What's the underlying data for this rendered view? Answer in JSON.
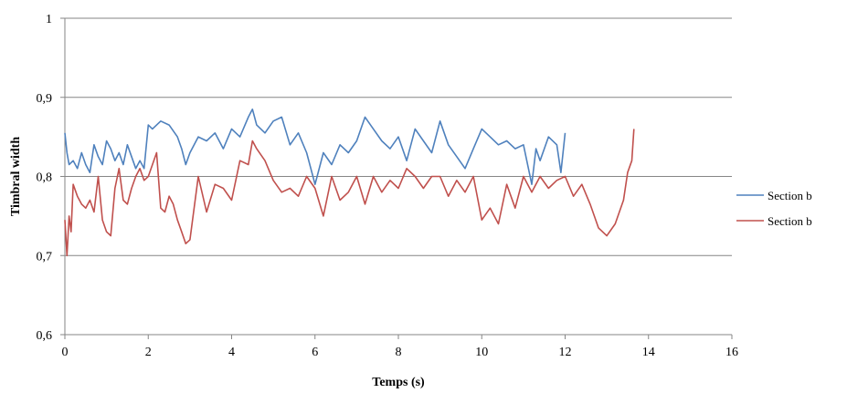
{
  "chart_data": {
    "type": "line",
    "xlabel": "Temps (s)",
    "ylabel": "Timbral width",
    "xlim": [
      0,
      16
    ],
    "ylim": [
      0.6,
      1.0
    ],
    "x_ticks": [
      0,
      2,
      4,
      6,
      8,
      10,
      12,
      14,
      16
    ],
    "x_tick_labels": [
      "0",
      "2",
      "4",
      "6",
      "8",
      "10",
      "12",
      "14",
      "16"
    ],
    "y_ticks": [
      0.6,
      0.7,
      0.8,
      0.9,
      1.0
    ],
    "y_tick_labels": [
      "0,6",
      "0,7",
      "0,8",
      "0,9",
      "1"
    ],
    "grid": "horizontal",
    "legend_position": "right",
    "series": [
      {
        "name": "Section b",
        "color": "#4f81bd",
        "x": [
          0,
          0.05,
          0.1,
          0.2,
          0.3,
          0.4,
          0.5,
          0.6,
          0.7,
          0.8,
          0.9,
          1.0,
          1.1,
          1.2,
          1.3,
          1.4,
          1.5,
          1.6,
          1.7,
          1.8,
          1.9,
          2.0,
          2.1,
          2.3,
          2.5,
          2.7,
          2.8,
          2.9,
          3.0,
          3.2,
          3.4,
          3.6,
          3.8,
          4.0,
          4.2,
          4.4,
          4.5,
          4.6,
          4.8,
          5.0,
          5.2,
          5.4,
          5.6,
          5.8,
          6.0,
          6.2,
          6.4,
          6.6,
          6.8,
          7.0,
          7.2,
          7.4,
          7.6,
          7.8,
          8.0,
          8.2,
          8.4,
          8.6,
          8.8,
          9.0,
          9.2,
          9.4,
          9.6,
          9.8,
          10.0,
          10.2,
          10.4,
          10.6,
          10.8,
          11.0,
          11.2,
          11.3,
          11.4,
          11.6,
          11.8,
          11.9,
          12.0
        ],
        "values": [
          0.855,
          0.83,
          0.815,
          0.82,
          0.81,
          0.83,
          0.815,
          0.805,
          0.84,
          0.825,
          0.815,
          0.845,
          0.835,
          0.82,
          0.83,
          0.815,
          0.84,
          0.825,
          0.81,
          0.82,
          0.81,
          0.865,
          0.86,
          0.87,
          0.865,
          0.85,
          0.835,
          0.815,
          0.83,
          0.85,
          0.845,
          0.855,
          0.835,
          0.86,
          0.85,
          0.875,
          0.885,
          0.865,
          0.855,
          0.87,
          0.875,
          0.84,
          0.855,
          0.83,
          0.79,
          0.83,
          0.815,
          0.84,
          0.83,
          0.845,
          0.875,
          0.86,
          0.845,
          0.835,
          0.85,
          0.82,
          0.86,
          0.845,
          0.83,
          0.87,
          0.84,
          0.825,
          0.81,
          0.835,
          0.86,
          0.85,
          0.84,
          0.845,
          0.835,
          0.84,
          0.79,
          0.835,
          0.82,
          0.85,
          0.84,
          0.805,
          0.855
        ]
      },
      {
        "name": "Section b",
        "color": "#c0504d",
        "x": [
          0,
          0.05,
          0.1,
          0.15,
          0.2,
          0.3,
          0.4,
          0.5,
          0.6,
          0.7,
          0.8,
          0.9,
          1.0,
          1.1,
          1.2,
          1.3,
          1.4,
          1.5,
          1.6,
          1.7,
          1.8,
          1.9,
          2.0,
          2.2,
          2.3,
          2.4,
          2.5,
          2.6,
          2.7,
          2.8,
          2.9,
          3.0,
          3.2,
          3.4,
          3.6,
          3.8,
          4.0,
          4.2,
          4.4,
          4.5,
          4.6,
          4.8,
          5.0,
          5.2,
          5.4,
          5.6,
          5.8,
          6.0,
          6.2,
          6.4,
          6.6,
          6.8,
          7.0,
          7.2,
          7.4,
          7.6,
          7.8,
          8.0,
          8.2,
          8.4,
          8.6,
          8.8,
          9.0,
          9.2,
          9.4,
          9.6,
          9.8,
          10.0,
          10.2,
          10.4,
          10.6,
          10.8,
          11.0,
          11.2,
          11.4,
          11.6,
          11.8,
          12.0,
          12.2,
          12.4,
          12.6,
          12.8,
          13.0,
          13.2,
          13.4,
          13.5,
          13.6,
          13.65
        ],
        "values": [
          0.745,
          0.7,
          0.75,
          0.73,
          0.79,
          0.775,
          0.765,
          0.76,
          0.77,
          0.755,
          0.8,
          0.745,
          0.73,
          0.725,
          0.785,
          0.81,
          0.77,
          0.765,
          0.785,
          0.8,
          0.81,
          0.795,
          0.8,
          0.83,
          0.76,
          0.755,
          0.775,
          0.765,
          0.745,
          0.73,
          0.715,
          0.72,
          0.8,
          0.755,
          0.79,
          0.785,
          0.77,
          0.82,
          0.815,
          0.845,
          0.835,
          0.82,
          0.795,
          0.78,
          0.785,
          0.775,
          0.8,
          0.785,
          0.75,
          0.8,
          0.77,
          0.78,
          0.8,
          0.765,
          0.8,
          0.78,
          0.795,
          0.785,
          0.81,
          0.8,
          0.785,
          0.8,
          0.8,
          0.775,
          0.795,
          0.78,
          0.8,
          0.745,
          0.76,
          0.74,
          0.79,
          0.76,
          0.8,
          0.78,
          0.8,
          0.785,
          0.795,
          0.8,
          0.775,
          0.79,
          0.765,
          0.735,
          0.725,
          0.74,
          0.77,
          0.805,
          0.82,
          0.86
        ]
      }
    ]
  }
}
